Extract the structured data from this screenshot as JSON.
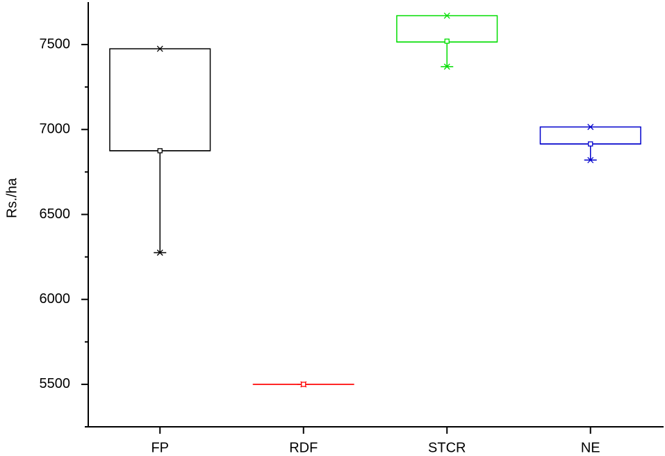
{
  "chart_data": {
    "type": "box",
    "ylabel": "Rs./ha",
    "categories": [
      "FP",
      "RDF",
      "STCR",
      "NE"
    ],
    "colors": [
      "#000000",
      "#ff0000",
      "#00dd00",
      "#0000cc"
    ],
    "boxes": [
      {
        "min": 6275,
        "q1": 6875,
        "median": 6875,
        "q3": 7475,
        "max": 7475,
        "mean": 6875
      },
      {
        "min": 5500,
        "q1": 5500,
        "median": 5500,
        "q3": 5500,
        "max": 5500,
        "mean": 5500
      },
      {
        "min": 7370,
        "q1": 7515,
        "median": 7515,
        "q3": 7670,
        "max": 7670,
        "mean": 7520
      },
      {
        "min": 6820,
        "q1": 6915,
        "median": 6915,
        "q3": 7015,
        "max": 7015,
        "mean": 6915
      }
    ],
    "ylim": [
      5250,
      7750
    ],
    "yticks": [
      5500,
      6000,
      6500,
      7000,
      7500
    ],
    "minor_yticks": [
      5250,
      5750,
      6250,
      6750,
      7250
    ]
  }
}
